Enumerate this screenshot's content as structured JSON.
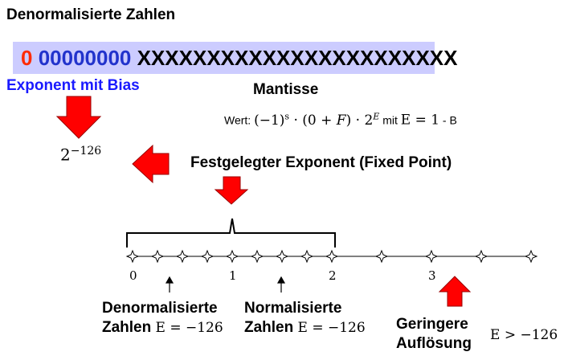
{
  "title": "Denormalisierte Zahlen",
  "bits": {
    "sign": "0",
    "exponent": "00000000",
    "mantissa": "XXXXXXXXXXXXXXXXXXXXXXX"
  },
  "labels": {
    "exponent_bias": "Exponent mit Bias",
    "mantissa": "Mantisse",
    "fixed_exponent": "Festgelegter Exponent (Fixed Point)"
  },
  "formula": {
    "prefix": "Wert:",
    "value_expr": "(−1)",
    "sign_sup": "s",
    "middle": " · (0 + ",
    "f": "F",
    "tail": ") · 2",
    "exp_sup": "E",
    "mit": "mit",
    "e_eq": "E = 1",
    "minus_b": "- B"
  },
  "power": {
    "base": "2",
    "exponent": "−126"
  },
  "numberline": {
    "ticks": [
      "0",
      "1",
      "2",
      "3"
    ]
  },
  "captions": {
    "denorm_line1": "Denormalisierte",
    "denorm_line2": "Zahlen",
    "denorm_e": "E = −126",
    "norm_line1": "Normalisierte",
    "norm_line2": "Zahlen",
    "norm_e": "E = −126",
    "low_line1": "Geringere",
    "low_line2": "Auflösung",
    "e_greater": "E > −126"
  },
  "colors": {
    "sign": "#ff2a00",
    "exponent": "#2233cc",
    "highlight_box": "#ccccff",
    "arrow": "#ff0000"
  },
  "icons": [
    "red-down-arrow-icon",
    "red-left-arrow-icon",
    "red-up-arrow-icon",
    "small-up-arrow-icon",
    "diamond-tick-icon"
  ]
}
